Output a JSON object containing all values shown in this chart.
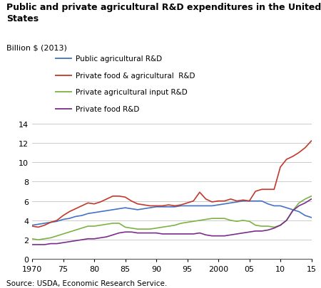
{
  "title": "Public and private agricultural R&D expenditures in the United\nStates",
  "subtitle": "Billion $ (2013)",
  "source": "Source: USDA, Economic Research Service.",
  "years": [
    1970,
    1971,
    1972,
    1973,
    1974,
    1975,
    1976,
    1977,
    1978,
    1979,
    1980,
    1981,
    1982,
    1983,
    1984,
    1985,
    1986,
    1987,
    1988,
    1989,
    1990,
    1991,
    1992,
    1993,
    1994,
    1995,
    1996,
    1997,
    1998,
    1999,
    2000,
    2001,
    2002,
    2003,
    2004,
    2005,
    2006,
    2007,
    2008,
    2009,
    2010,
    2011,
    2012,
    2013,
    2014,
    2015
  ],
  "public": [
    3.5,
    3.6,
    3.7,
    3.8,
    3.9,
    4.1,
    4.2,
    4.4,
    4.5,
    4.7,
    4.8,
    4.9,
    5.0,
    5.1,
    5.2,
    5.3,
    5.2,
    5.1,
    5.2,
    5.3,
    5.4,
    5.4,
    5.4,
    5.4,
    5.5,
    5.5,
    5.5,
    5.5,
    5.5,
    5.5,
    5.6,
    5.7,
    5.8,
    5.9,
    6.0,
    6.0,
    6.0,
    6.0,
    5.7,
    5.5,
    5.5,
    5.3,
    5.1,
    4.9,
    4.5,
    4.3
  ],
  "private_food_ag": [
    3.4,
    3.3,
    3.5,
    3.8,
    4.0,
    4.5,
    4.9,
    5.2,
    5.5,
    5.8,
    5.7,
    5.9,
    6.2,
    6.5,
    6.5,
    6.4,
    6.0,
    5.7,
    5.6,
    5.5,
    5.5,
    5.5,
    5.6,
    5.5,
    5.6,
    5.8,
    6.0,
    6.9,
    6.2,
    5.9,
    6.0,
    6.0,
    6.2,
    6.0,
    6.1,
    6.0,
    7.0,
    7.2,
    7.2,
    7.2,
    9.5,
    10.3,
    10.6,
    11.0,
    11.5,
    12.2
  ],
  "private_ag_input": [
    2.1,
    2.0,
    2.1,
    2.2,
    2.4,
    2.6,
    2.8,
    3.0,
    3.2,
    3.4,
    3.4,
    3.5,
    3.6,
    3.7,
    3.7,
    3.3,
    3.2,
    3.1,
    3.1,
    3.1,
    3.2,
    3.3,
    3.4,
    3.5,
    3.7,
    3.8,
    3.9,
    4.0,
    4.1,
    4.2,
    4.2,
    4.2,
    4.0,
    3.9,
    4.0,
    3.9,
    3.5,
    3.4,
    3.4,
    3.3,
    3.5,
    4.0,
    5.0,
    5.8,
    6.2,
    6.5
  ],
  "private_food": [
    1.5,
    1.5,
    1.5,
    1.6,
    1.6,
    1.7,
    1.8,
    1.9,
    2.0,
    2.1,
    2.1,
    2.2,
    2.3,
    2.5,
    2.7,
    2.8,
    2.8,
    2.7,
    2.7,
    2.7,
    2.7,
    2.6,
    2.6,
    2.6,
    2.6,
    2.6,
    2.6,
    2.7,
    2.5,
    2.4,
    2.4,
    2.4,
    2.5,
    2.6,
    2.7,
    2.8,
    2.9,
    2.9,
    3.0,
    3.2,
    3.5,
    4.0,
    5.0,
    5.5,
    5.8,
    6.2
  ],
  "colors": {
    "public": "#4472C4",
    "private_food_ag": "#C0392B",
    "private_ag_input": "#7CB342",
    "private_food": "#7B2D8B"
  },
  "legend_labels": {
    "public": "Public agricultural R&D",
    "private_food_ag": "Private food & agricultural  R&D",
    "private_ag_input": "Private agricultural input R&D",
    "private_food": "Private food R&D"
  },
  "ylim": [
    0,
    14
  ],
  "yticks": [
    0,
    2,
    4,
    6,
    8,
    10,
    12,
    14
  ],
  "xlim": [
    1970,
    2015
  ],
  "xticks": [
    1970,
    1975,
    1980,
    1985,
    1990,
    1995,
    2000,
    2005,
    2010,
    2015
  ],
  "xticklabels": [
    "1970",
    "75",
    "80",
    "85",
    "90",
    "95",
    "2000",
    "05",
    "10",
    "15"
  ]
}
